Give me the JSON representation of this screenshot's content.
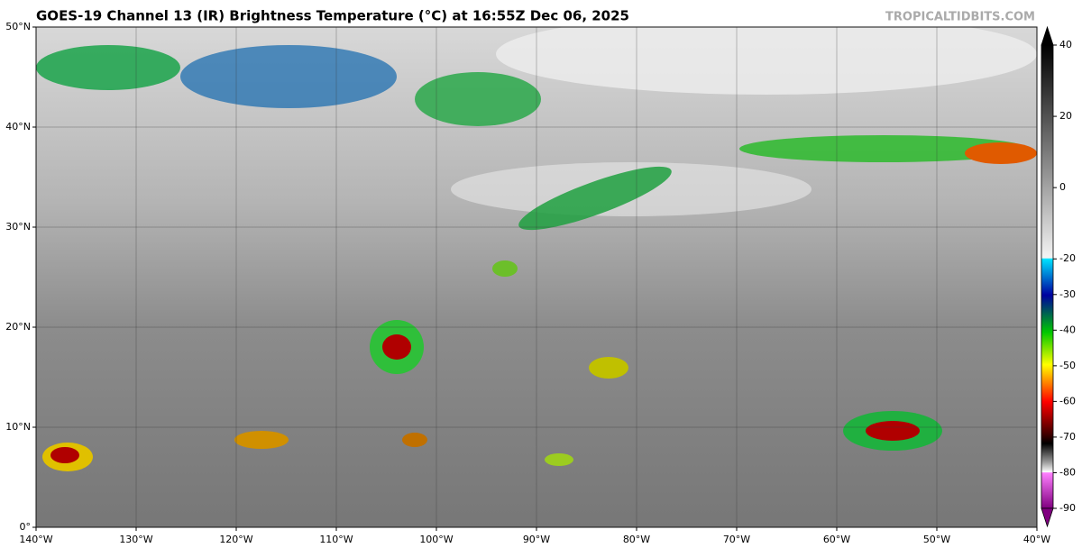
{
  "header": {
    "title": "GOES-19 Channel 13 (IR) Brightness Temperature (°C) at 16:55Z Dec 06, 2025",
    "credit": "TROPICALTIDBITS.COM"
  },
  "map": {
    "lonlim": [
      -140,
      -40
    ],
    "latlim": [
      0,
      50
    ],
    "lon_ticks": [
      {
        "value": -140,
        "label": "140°W"
      },
      {
        "value": -130,
        "label": "130°W"
      },
      {
        "value": -120,
        "label": "120°W"
      },
      {
        "value": -110,
        "label": "110°W"
      },
      {
        "value": -100,
        "label": "100°W"
      },
      {
        "value": -90,
        "label": "90°W"
      },
      {
        "value": -80,
        "label": "80°W"
      },
      {
        "value": -70,
        "label": "70°W"
      },
      {
        "value": -60,
        "label": "60°W"
      },
      {
        "value": -50,
        "label": "50°W"
      },
      {
        "value": -40,
        "label": "40°W"
      }
    ],
    "lat_ticks": [
      {
        "value": 0,
        "label": "0°"
      },
      {
        "value": 10,
        "label": "10°N"
      },
      {
        "value": 20,
        "label": "20°N"
      },
      {
        "value": 30,
        "label": "30°N"
      },
      {
        "value": 40,
        "label": "40°N"
      },
      {
        "value": 50,
        "label": "50°N"
      }
    ]
  },
  "colorbar": {
    "range": [
      -90,
      40
    ],
    "ticks": [
      40,
      20,
      0,
      -20,
      -30,
      -40,
      -50,
      -60,
      -70,
      -80,
      -90
    ]
  }
}
